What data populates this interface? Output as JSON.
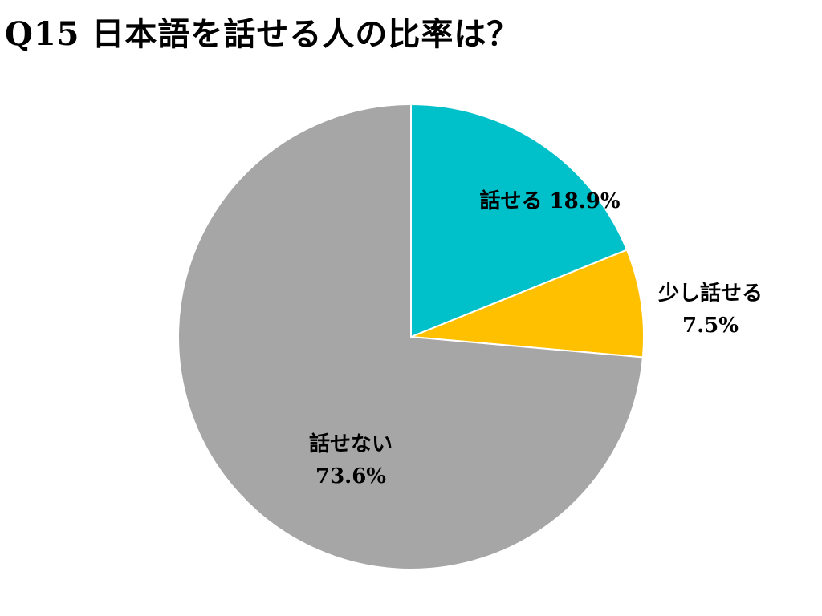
{
  "chart_data": {
    "type": "pie",
    "title": "Q15 日本語を話せる人の比率は？",
    "slices": [
      {
        "label": "話せる",
        "value": 18.9,
        "value_text": "18.9%",
        "color": "#00C0CA"
      },
      {
        "label": "少し話せる",
        "value": 7.5,
        "value_text": "7.5%",
        "color": "#FFC000"
      },
      {
        "label": "話せない",
        "value": 73.6,
        "value_text": "73.6%",
        "color": "#A6A6A6"
      }
    ],
    "start_angle": "12 o'clock",
    "direction": "clockwise",
    "legend": "none"
  }
}
